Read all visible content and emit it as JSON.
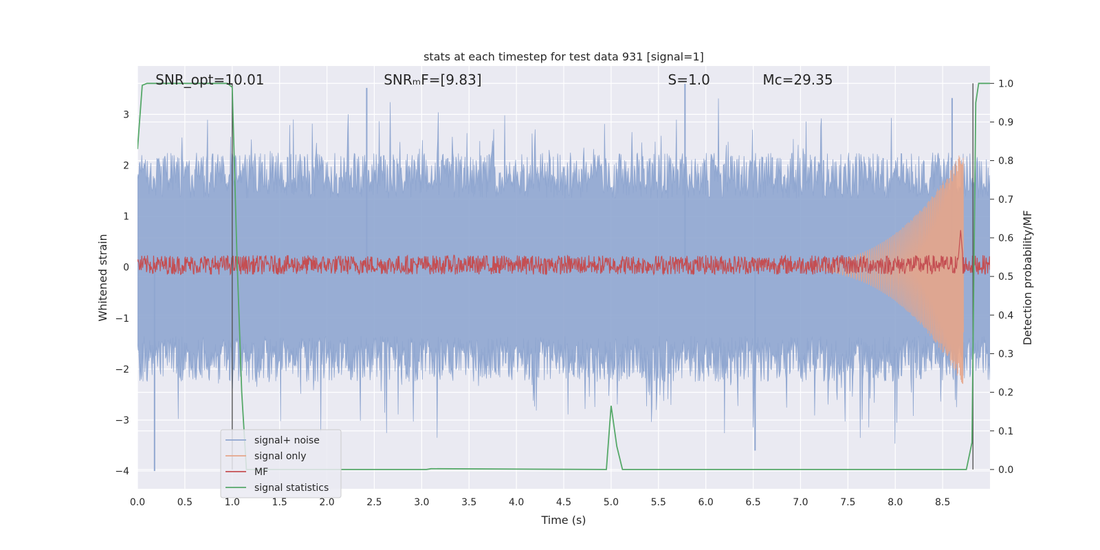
{
  "chart_data": {
    "type": "line",
    "title": "stats at each timestep for test data 931 [signal=1]",
    "xlabel": "Time (s)",
    "ylabel_left": "Whitened strain",
    "ylabel_right": "Detection probability/MF",
    "xlim": [
      0.0,
      9.0
    ],
    "ylim_left": [
      -4.35,
      3.95
    ],
    "ylim_right": [
      -0.05,
      1.045
    ],
    "x_ticks": [
      "0.0",
      "0.5",
      "1.0",
      "1.5",
      "2.0",
      "2.5",
      "3.0",
      "3.5",
      "4.0",
      "4.5",
      "5.0",
      "5.5",
      "6.0",
      "6.5",
      "7.0",
      "7.5",
      "8.0",
      "8.5"
    ],
    "y_ticks_left": [
      "3",
      "2",
      "1",
      "0",
      "−1",
      "−2",
      "−3",
      "−4"
    ],
    "y_ticks_right": [
      "1.0",
      "0.9",
      "0.8",
      "0.7",
      "0.6",
      "0.5",
      "0.4",
      "0.3",
      "0.2",
      "0.1",
      "0.0"
    ],
    "grid": true,
    "legend_position": "lower-left",
    "annotations": [
      {
        "name": "snr-opt",
        "text": "SNR_opt=10.01",
        "x": 0.19,
        "y": 3.68
      },
      {
        "name": "snr-mf",
        "text": "SNRₘF=[9.83]",
        "x": 2.6,
        "y": 3.68
      },
      {
        "name": "s-stat",
        "text": "S=1.0",
        "x": 5.6,
        "y": 3.68
      },
      {
        "name": "mc",
        "text": "Mᴄ=29.35",
        "x": 6.6,
        "y": 3.68
      }
    ],
    "vertical_lines": [
      1.0,
      8.82
    ],
    "series": [
      {
        "name": "signal+ noise",
        "color": "#8fa6d0",
        "axis": "left",
        "envelope": {
          "upper_typical": 2.0,
          "lower_typical": -2.0,
          "peak_max": 3.55,
          "peak_min": -4.0
        },
        "notable_peaks": [
          {
            "x": 0.18,
            "y": -4.0
          },
          {
            "x": 2.42,
            "y": 3.52
          },
          {
            "x": 5.78,
            "y": 3.6
          },
          {
            "x": 6.52,
            "y": -3.6
          },
          {
            "x": 8.6,
            "y": 3.32
          }
        ]
      },
      {
        "name": "signal only",
        "color": "#e6a58a",
        "axis": "left",
        "chirp": {
          "start_x": 6.5,
          "end_x": 8.72,
          "max_amplitude": 2.35
        }
      },
      {
        "name": "MF",
        "color": "#c44e52",
        "axis": "right",
        "baseline": 0.53,
        "spread": 0.025,
        "peak": {
          "x": 8.69,
          "y": 0.62
        }
      },
      {
        "name": "signal statistics",
        "color": "#55a868",
        "axis": "right",
        "x": [
          0.0,
          0.05,
          0.1,
          0.95,
          1.0,
          1.05,
          1.1,
          1.15,
          1.2,
          3.05,
          3.1,
          4.95,
          5.0,
          5.06,
          5.12,
          8.75,
          8.81,
          8.85,
          8.88,
          9.0
        ],
        "y": [
          0.83,
          0.995,
          1.0,
          1.0,
          0.99,
          0.55,
          0.2,
          0.0,
          0.0,
          0.0,
          0.002,
          0.0,
          0.165,
          0.06,
          0.0,
          0.0,
          0.07,
          0.95,
          1.0,
          1.0
        ]
      }
    ]
  }
}
